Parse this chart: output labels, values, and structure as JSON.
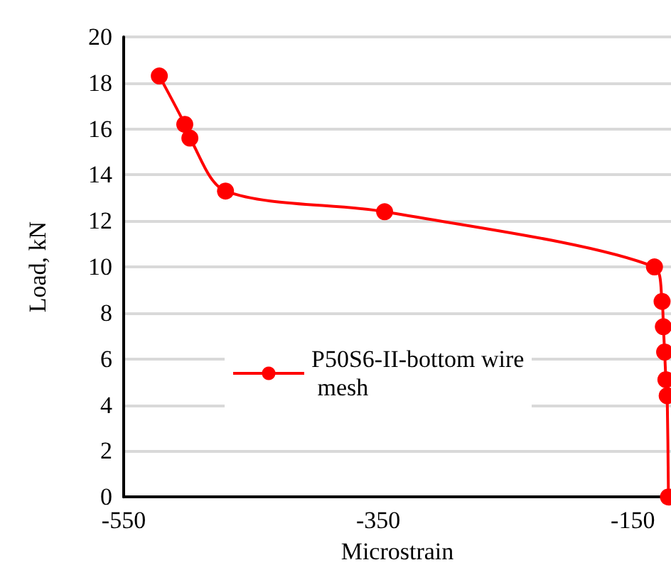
{
  "chart_data": {
    "type": "line",
    "xlabel": "Microstrain",
    "ylabel": "Load, kN",
    "x": [
      -122,
      -123,
      -124,
      -125,
      -126,
      -127,
      -133,
      -345,
      -470,
      -498,
      -502,
      -522
    ],
    "series": [
      {
        "name": "P50S6-II-bottom wire mesh",
        "color": "#ff0000",
        "values": [
          0,
          4.4,
          5.1,
          6.3,
          7.4,
          8.5,
          10.0,
          12.4,
          13.3,
          15.6,
          16.2,
          18.3
        ]
      }
    ],
    "xlim": [
      -550,
      -120
    ],
    "xticks": [
      -550,
      -350,
      -150
    ],
    "ylim": [
      0,
      20
    ],
    "yticks": [
      0,
      2,
      4,
      6,
      8,
      10,
      12,
      14,
      16,
      18,
      20
    ],
    "grid": "y",
    "legend": "left",
    "marker": "circle",
    "line_style": "solid"
  }
}
